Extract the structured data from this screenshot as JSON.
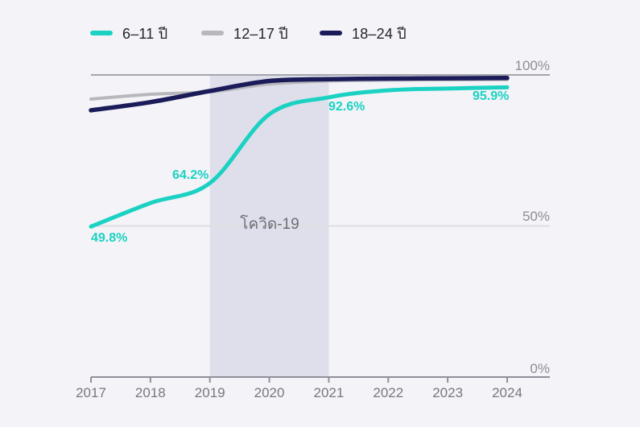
{
  "chart_data": {
    "type": "line",
    "title": "",
    "x": [
      2017,
      2018,
      2019,
      2020,
      2021,
      2022,
      2023,
      2024
    ],
    "ylim": [
      0,
      100
    ],
    "yticks": [
      "100%",
      "50%",
      "0%"
    ],
    "unit": "%",
    "grid": "horizontal",
    "legend_position": "top-left",
    "series": [
      {
        "name": "6–11 ปี",
        "color": "#1bd2c2",
        "values": [
          49.8,
          57.6,
          64.2,
          87.0,
          92.6,
          94.9,
          95.5,
          95.9
        ]
      },
      {
        "name": "12–17 ปี",
        "color": "#b7b7bc",
        "values": [
          92.0,
          93.6,
          94.4,
          97.0,
          98.0,
          98.3,
          98.4,
          98.5
        ]
      },
      {
        "name": "18–24 ปี",
        "color": "#1b1b5a",
        "values": [
          88.3,
          91.0,
          94.7,
          98.0,
          98.6,
          98.8,
          98.9,
          99.0
        ]
      }
    ],
    "region": {
      "label": "โควิด-19",
      "x_start": 2019,
      "x_end": 2021,
      "color": "#dfdfeb"
    },
    "point_labels": [
      {
        "series": "6–11 ปี",
        "x": 2017,
        "text": "49.8%"
      },
      {
        "series": "6–11 ปี",
        "x": 2019,
        "text": "64.2%"
      },
      {
        "series": "6–11 ปี",
        "x": 2021,
        "text": "92.6%"
      },
      {
        "series": "6–11 ปี",
        "x": 2024,
        "text": "95.9%"
      }
    ]
  },
  "colors": {
    "background": "#f3f3f8",
    "grid_top": "#a4a4ac",
    "grid_mid": "#dddde3",
    "axis": "#90909a",
    "year_label": "#77777f",
    "ytick_label": "#8d8d95",
    "region_label": "#6d6d77",
    "legend_text": "#23232b"
  }
}
